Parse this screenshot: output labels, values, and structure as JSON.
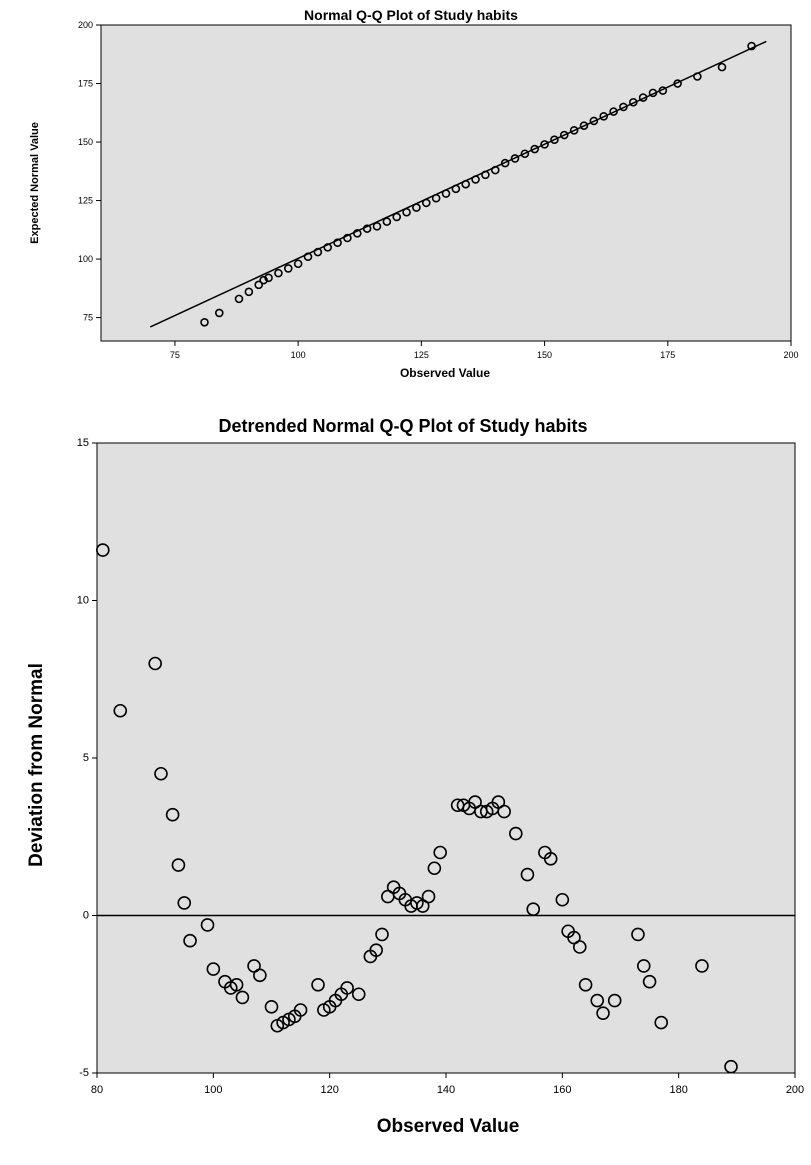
{
  "chart_data": [
    {
      "type": "scatter",
      "title": "Normal Q-Q Plot of Study habits",
      "xlabel": "Observed Value",
      "ylabel": "Expected Normal Value",
      "xlim": [
        60,
        200
      ],
      "ylim": [
        65,
        200
      ],
      "xticks": [
        "75",
        "100",
        "125",
        "150",
        "175",
        "200"
      ],
      "yticks": [
        "75",
        "100",
        "125",
        "150",
        "175",
        "200"
      ],
      "reference_line": [
        [
          70,
          71
        ],
        [
          195,
          193
        ]
      ],
      "points": [
        [
          81,
          73
        ],
        [
          84,
          77
        ],
        [
          88,
          83
        ],
        [
          90,
          86
        ],
        [
          92,
          89
        ],
        [
          93,
          91
        ],
        [
          94,
          92
        ],
        [
          96,
          94
        ],
        [
          98,
          96
        ],
        [
          100,
          98
        ],
        [
          102,
          101
        ],
        [
          104,
          103
        ],
        [
          106,
          105
        ],
        [
          108,
          107
        ],
        [
          110,
          109
        ],
        [
          112,
          111
        ],
        [
          114,
          113
        ],
        [
          116,
          114
        ],
        [
          118,
          116
        ],
        [
          120,
          118
        ],
        [
          122,
          120
        ],
        [
          124,
          122
        ],
        [
          126,
          124
        ],
        [
          128,
          126
        ],
        [
          130,
          128
        ],
        [
          132,
          130
        ],
        [
          134,
          132
        ],
        [
          136,
          134
        ],
        [
          138,
          136
        ],
        [
          140,
          138
        ],
        [
          142,
          141
        ],
        [
          144,
          143
        ],
        [
          146,
          145
        ],
        [
          148,
          147
        ],
        [
          150,
          149
        ],
        [
          152,
          151
        ],
        [
          154,
          153
        ],
        [
          156,
          155
        ],
        [
          158,
          157
        ],
        [
          160,
          159
        ],
        [
          162,
          161
        ],
        [
          164,
          163
        ],
        [
          166,
          165
        ],
        [
          168,
          167
        ],
        [
          170,
          169
        ],
        [
          172,
          171
        ],
        [
          174,
          172
        ],
        [
          177,
          175
        ],
        [
          181,
          178
        ],
        [
          186,
          182
        ],
        [
          192,
          191
        ]
      ]
    },
    {
      "type": "scatter",
      "title": "Detrended Normal Q-Q Plot of Study habits",
      "xlabel": "Observed Value",
      "ylabel": "Deviation from Normal",
      "xlim": [
        80,
        200
      ],
      "ylim": [
        -5,
        15
      ],
      "xticks": [
        "80",
        "100",
        "120",
        "140",
        "160",
        "180",
        "200"
      ],
      "yticks": [
        "-5",
        "0",
        "5",
        "10",
        "15"
      ],
      "reference_y": 0,
      "points": [
        [
          81,
          11.6
        ],
        [
          84,
          6.5
        ],
        [
          90,
          8.0
        ],
        [
          91,
          4.5
        ],
        [
          93,
          3.2
        ],
        [
          94,
          1.6
        ],
        [
          95,
          0.4
        ],
        [
          96,
          -0.8
        ],
        [
          99,
          -0.3
        ],
        [
          100,
          -1.7
        ],
        [
          102,
          -2.1
        ],
        [
          103,
          -2.3
        ],
        [
          104,
          -2.2
        ],
        [
          105,
          -2.6
        ],
        [
          107,
          -1.6
        ],
        [
          108,
          -1.9
        ],
        [
          110,
          -2.9
        ],
        [
          111,
          -3.5
        ],
        [
          112,
          -3.4
        ],
        [
          113,
          -3.3
        ],
        [
          114,
          -3.2
        ],
        [
          115,
          -3.0
        ],
        [
          118,
          -2.2
        ],
        [
          119,
          -3.0
        ],
        [
          120,
          -2.9
        ],
        [
          121,
          -2.7
        ],
        [
          122,
          -2.5
        ],
        [
          123,
          -2.3
        ],
        [
          125,
          -2.5
        ],
        [
          127,
          -1.3
        ],
        [
          128,
          -1.1
        ],
        [
          129,
          -0.6
        ],
        [
          130,
          0.6
        ],
        [
          131,
          0.9
        ],
        [
          132,
          0.7
        ],
        [
          133,
          0.5
        ],
        [
          134,
          0.3
        ],
        [
          135,
          0.4
        ],
        [
          136,
          0.3
        ],
        [
          137,
          0.6
        ],
        [
          138,
          1.5
        ],
        [
          139,
          2.0
        ],
        [
          142,
          3.5
        ],
        [
          143,
          3.5
        ],
        [
          144,
          3.4
        ],
        [
          145,
          3.6
        ],
        [
          146,
          3.3
        ],
        [
          147,
          3.3
        ],
        [
          148,
          3.4
        ],
        [
          149,
          3.6
        ],
        [
          150,
          3.3
        ],
        [
          152,
          2.6
        ],
        [
          154,
          1.3
        ],
        [
          155,
          0.2
        ],
        [
          157,
          2.0
        ],
        [
          158,
          1.8
        ],
        [
          160,
          0.5
        ],
        [
          161,
          -0.5
        ],
        [
          162,
          -0.7
        ],
        [
          163,
          -1.0
        ],
        [
          164,
          -2.2
        ],
        [
          166,
          -2.7
        ],
        [
          167,
          -3.1
        ],
        [
          169,
          -2.7
        ],
        [
          173,
          -0.6
        ],
        [
          174,
          -1.6
        ],
        [
          175,
          -2.1
        ],
        [
          177,
          -3.4
        ],
        [
          184,
          -1.6
        ],
        [
          189,
          -4.8
        ]
      ]
    }
  ]
}
